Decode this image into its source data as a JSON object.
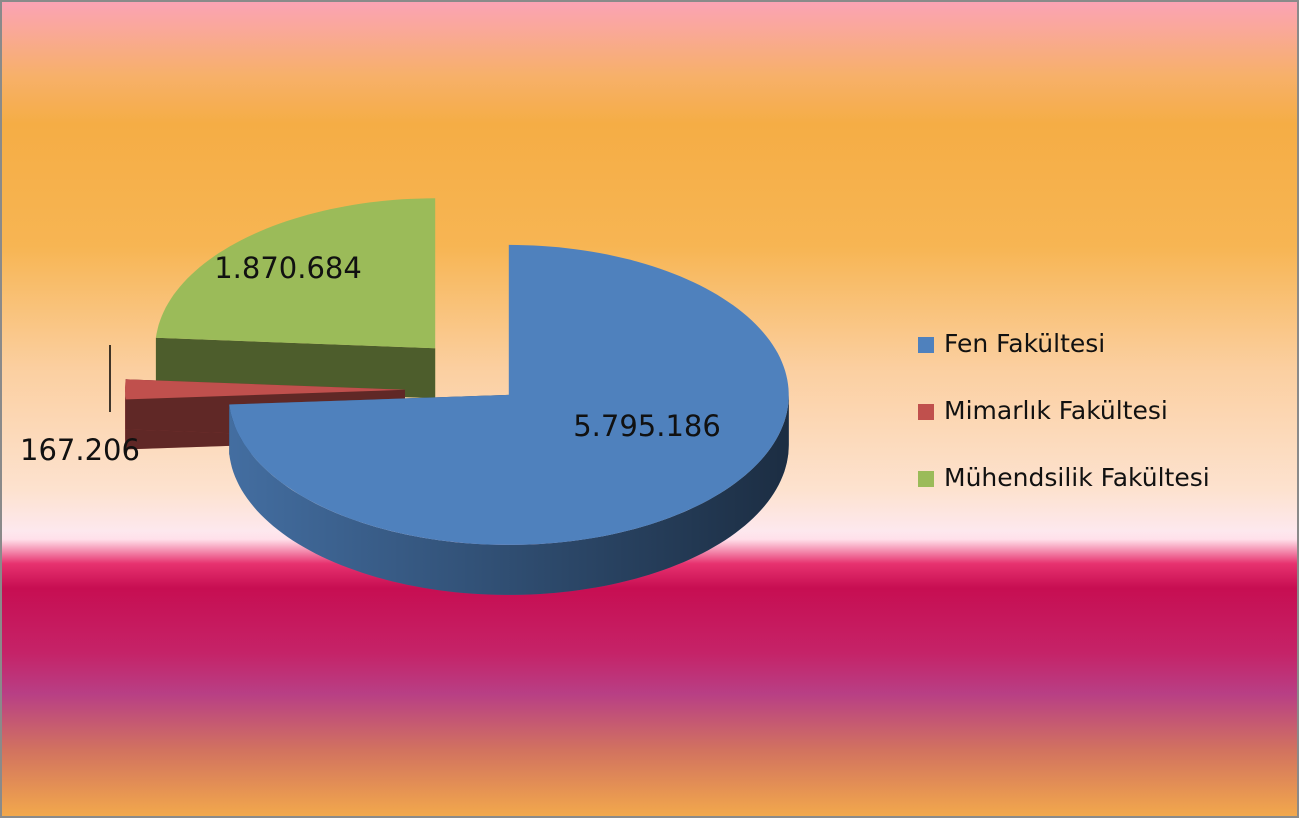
{
  "chart_data": {
    "type": "pie",
    "categories": [
      "Fen Fakültesi",
      "Mimarlık Fakültesi",
      "Mühendsilik Fakültesi"
    ],
    "values": [
      5795186,
      167206,
      1870684
    ],
    "value_labels": [
      "5.795.186",
      "167.206",
      "1.870.684"
    ],
    "colors": [
      "#4f81bd",
      "#c0504d",
      "#9bbb59"
    ],
    "legend": "right"
  }
}
